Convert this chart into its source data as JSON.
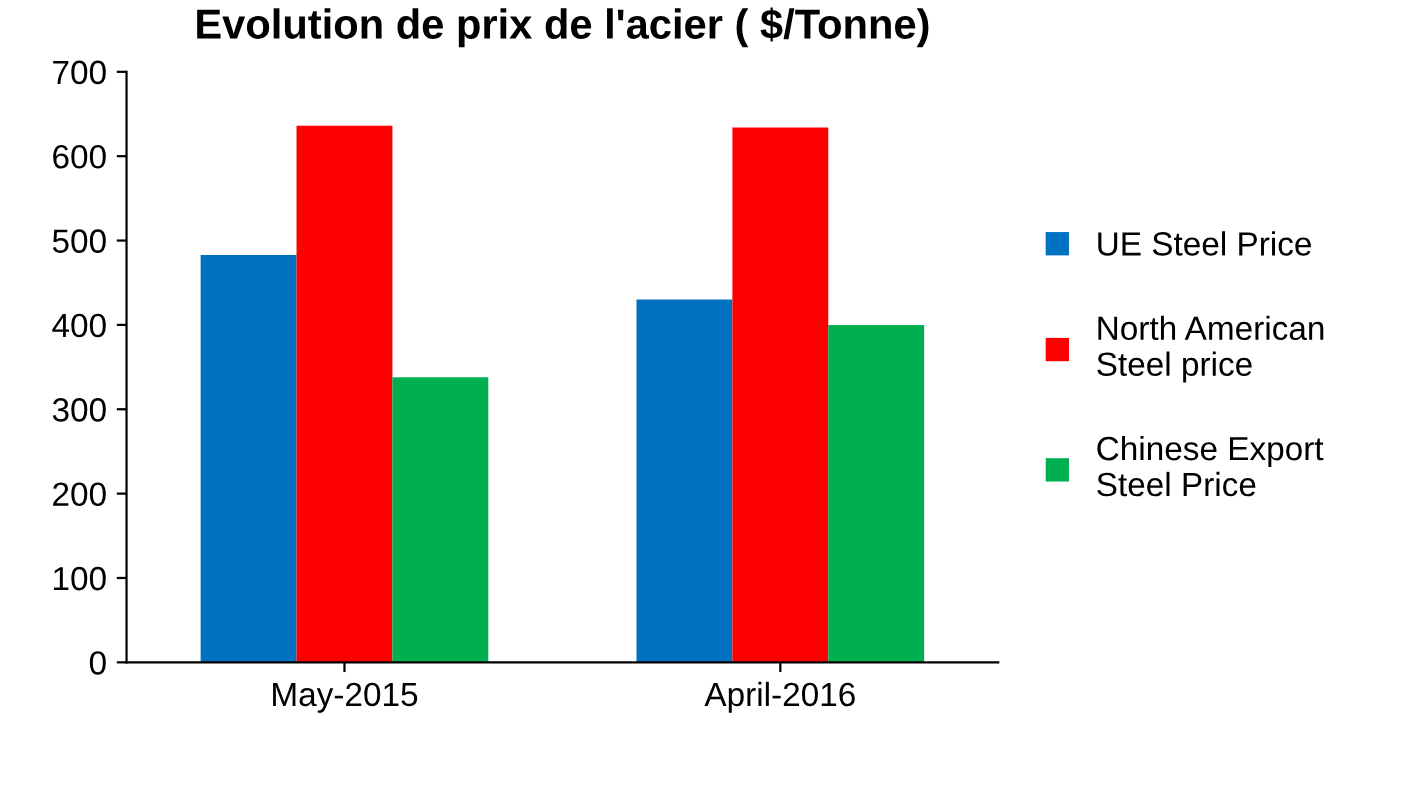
{
  "chart_data": {
    "type": "bar",
    "title": "Evolution de prix de l'acier ( $/Tonne)",
    "categories": [
      "May-2015",
      "April-2016"
    ],
    "series": [
      {
        "name": "UE Steel Price",
        "color": "#0070c0",
        "values": [
          483,
          430
        ]
      },
      {
        "name": "North American Steel price",
        "color": "#ff0000",
        "values": [
          636,
          634
        ]
      },
      {
        "name": "Chinese Export Steel Price",
        "color": "#00b050",
        "values": [
          338,
          400
        ]
      }
    ],
    "ylim": [
      0,
      700
    ],
    "yticks": [
      0,
      100,
      200,
      300,
      400,
      500,
      600,
      700
    ],
    "grid": false,
    "legend": "right"
  }
}
